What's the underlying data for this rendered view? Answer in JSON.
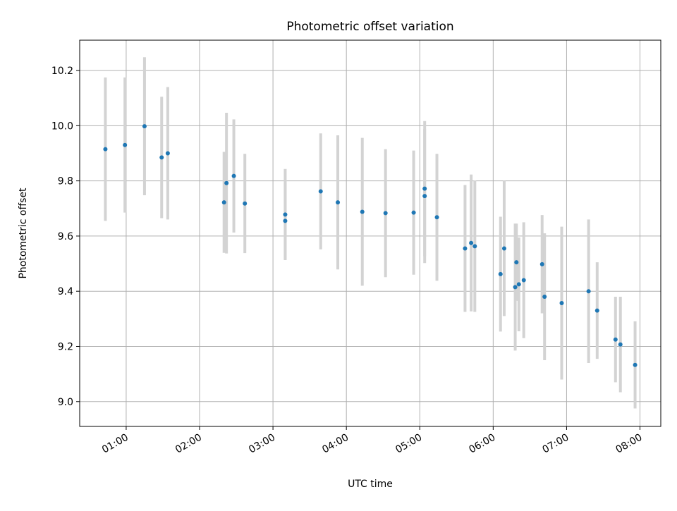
{
  "chart_data": {
    "type": "scatter",
    "title": "Photometric offset variation",
    "xlabel": "UTC time",
    "ylabel": "Photometric offset",
    "x_ticks": [
      "01:00",
      "02:00",
      "03:00",
      "04:00",
      "05:00",
      "06:00",
      "07:00",
      "08:00"
    ],
    "y_ticks": [
      "9.0",
      "9.2",
      "9.4",
      "9.6",
      "9.8",
      "10.0",
      "10.2"
    ],
    "xlim": [
      "00:22",
      "08:17"
    ],
    "ylim": [
      8.91,
      10.31
    ],
    "grid": true,
    "colors": {
      "marker": "#1f77b4",
      "errorbar": "#d3d3d3",
      "grid": "#b0b0b0"
    },
    "points": [
      {
        "x": "00:43",
        "y": 9.915,
        "yerr": 0.26
      },
      {
        "x": "00:59",
        "y": 9.93,
        "yerr": 0.245
      },
      {
        "x": "01:15",
        "y": 9.998,
        "yerr": 0.25
      },
      {
        "x": "01:29",
        "y": 9.885,
        "yerr": 0.22
      },
      {
        "x": "01:34",
        "y": 9.9,
        "yerr": 0.24
      },
      {
        "x": "02:20",
        "y": 9.722,
        "yerr": 0.183
      },
      {
        "x": "02:22",
        "y": 9.792,
        "yerr": 0.255
      },
      {
        "x": "02:28",
        "y": 9.818,
        "yerr": 0.205
      },
      {
        "x": "02:37",
        "y": 9.718,
        "yerr": 0.18
      },
      {
        "x": "03:10",
        "y": 9.678,
        "yerr": 0.165
      },
      {
        "x": "03:10",
        "y": 9.655,
        "yerr": 0.14
      },
      {
        "x": "03:39",
        "y": 9.762,
        "yerr": 0.21
      },
      {
        "x": "03:53",
        "y": 9.722,
        "yerr": 0.243
      },
      {
        "x": "04:13",
        "y": 9.688,
        "yerr": 0.268
      },
      {
        "x": "04:32",
        "y": 9.683,
        "yerr": 0.232
      },
      {
        "x": "04:55",
        "y": 9.685,
        "yerr": 0.225
      },
      {
        "x": "05:04",
        "y": 9.772,
        "yerr": 0.245
      },
      {
        "x": "05:04",
        "y": 9.745,
        "yerr": 0.243
      },
      {
        "x": "05:14",
        "y": 9.668,
        "yerr": 0.23
      },
      {
        "x": "05:37",
        "y": 9.555,
        "yerr": 0.23
      },
      {
        "x": "05:42",
        "y": 9.575,
        "yerr": 0.248
      },
      {
        "x": "05:45",
        "y": 9.563,
        "yerr": 0.238
      },
      {
        "x": "06:06",
        "y": 9.462,
        "yerr": 0.208
      },
      {
        "x": "06:09",
        "y": 9.555,
        "yerr": 0.245
      },
      {
        "x": "06:18",
        "y": 9.415,
        "yerr": 0.23
      },
      {
        "x": "06:19",
        "y": 9.505,
        "yerr": 0.14
      },
      {
        "x": "06:21",
        "y": 9.425,
        "yerr": 0.17
      },
      {
        "x": "06:25",
        "y": 9.44,
        "yerr": 0.21
      },
      {
        "x": "06:40",
        "y": 9.498,
        "yerr": 0.178
      },
      {
        "x": "06:42",
        "y": 9.38,
        "yerr": 0.23
      },
      {
        "x": "06:56",
        "y": 9.357,
        "yerr": 0.277
      },
      {
        "x": "07:18",
        "y": 9.4,
        "yerr": 0.26
      },
      {
        "x": "07:25",
        "y": 9.33,
        "yerr": 0.175
      },
      {
        "x": "07:40",
        "y": 9.225,
        "yerr": 0.155
      },
      {
        "x": "07:44",
        "y": 9.207,
        "yerr": 0.173
      },
      {
        "x": "07:56",
        "y": 9.133,
        "yerr": 0.158
      }
    ]
  }
}
